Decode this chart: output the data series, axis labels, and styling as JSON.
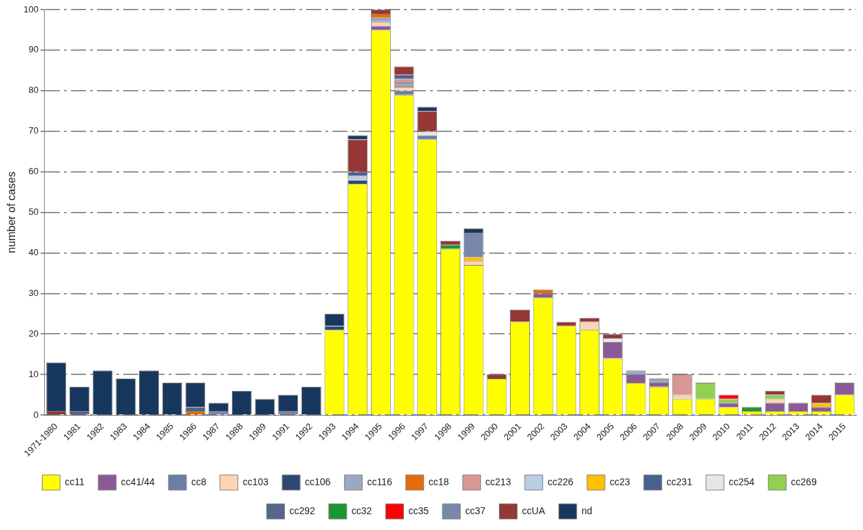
{
  "chart_data": {
    "type": "bar",
    "stacked": true,
    "ylabel": "number of cases",
    "categories": [
      "1971-1980",
      "1981",
      "1982",
      "1983",
      "1984",
      "1985",
      "1986",
      "1987",
      "1988",
      "1989",
      "1991",
      "1992",
      "1993",
      "1994",
      "1995",
      "1996",
      "1997",
      "1998",
      "1999",
      "2000",
      "2001",
      "2002",
      "2003",
      "2004",
      "2005",
      "2006",
      "2007",
      "2008",
      "2009",
      "2010",
      "2011",
      "2012",
      "2013",
      "2014",
      "2015"
    ],
    "ylim": [
      0,
      100
    ],
    "yticks": [
      0,
      10,
      20,
      30,
      40,
      50,
      60,
      70,
      80,
      90,
      100
    ],
    "grid": "y",
    "legend": "bottom",
    "series": [
      {
        "name": "cc11",
        "color": "#ffff00",
        "values": [
          null,
          null,
          null,
          null,
          null,
          null,
          null,
          null,
          null,
          null,
          null,
          null,
          21,
          57,
          95,
          79,
          68,
          41,
          37,
          9,
          23,
          29,
          22,
          21,
          14,
          8,
          7,
          4,
          4,
          2,
          1,
          1,
          1,
          1,
          5
        ]
      },
      {
        "name": "cc41/44",
        "color": "#8a5a97",
        "values": [
          null,
          null,
          null,
          null,
          null,
          null,
          null,
          null,
          null,
          null,
          null,
          null,
          null,
          null,
          1,
          null,
          null,
          null,
          null,
          null,
          null,
          1,
          null,
          null,
          4,
          2,
          1,
          null,
          null,
          1,
          null,
          2,
          2,
          1,
          3
        ]
      },
      {
        "name": "cc8",
        "color": "#6a7ea6",
        "values": [
          null,
          null,
          null,
          null,
          null,
          null,
          null,
          null,
          null,
          null,
          null,
          null,
          null,
          null,
          null,
          1,
          1,
          null,
          null,
          null,
          null,
          null,
          null,
          null,
          null,
          null,
          null,
          null,
          null,
          null,
          null,
          null,
          null,
          null,
          null
        ]
      },
      {
        "name": "cc103",
        "color": "#fcd5b5",
        "values": [
          null,
          null,
          null,
          null,
          null,
          null,
          null,
          null,
          null,
          null,
          null,
          null,
          null,
          null,
          1,
          1,
          null,
          null,
          1,
          null,
          null,
          null,
          null,
          2,
          null,
          null,
          null,
          1,
          null,
          null,
          null,
          1,
          null,
          null,
          null
        ]
      },
      {
        "name": "cc106",
        "color": "#2f4775",
        "values": [
          null,
          null,
          null,
          null,
          null,
          null,
          null,
          null,
          null,
          null,
          null,
          null,
          1,
          1,
          null,
          null,
          null,
          null,
          null,
          null,
          null,
          null,
          null,
          null,
          null,
          null,
          null,
          null,
          null,
          null,
          null,
          null,
          null,
          null,
          null
        ]
      },
      {
        "name": "cc116",
        "color": "#9aa8c2",
        "values": [
          null,
          null,
          null,
          null,
          null,
          null,
          null,
          null,
          null,
          null,
          null,
          null,
          null,
          null,
          1,
          1,
          null,
          null,
          null,
          null,
          null,
          null,
          null,
          null,
          null,
          1,
          1,
          null,
          null,
          null,
          null,
          null,
          null,
          null,
          null
        ]
      },
      {
        "name": "cc18",
        "color": "#e46c0a",
        "values": [
          null,
          null,
          null,
          null,
          null,
          null,
          1,
          null,
          null,
          null,
          null,
          null,
          null,
          null,
          1,
          null,
          null,
          null,
          null,
          null,
          null,
          1,
          null,
          null,
          null,
          null,
          null,
          null,
          null,
          null,
          null,
          null,
          null,
          null,
          null
        ]
      },
      {
        "name": "cc213",
        "color": "#d99694",
        "values": [
          null,
          null,
          null,
          null,
          null,
          null,
          null,
          null,
          null,
          null,
          null,
          null,
          null,
          null,
          null,
          1,
          null,
          null,
          null,
          null,
          null,
          null,
          null,
          null,
          null,
          null,
          null,
          5,
          null,
          null,
          null,
          null,
          null,
          null,
          null
        ]
      },
      {
        "name": "cc226",
        "color": "#b9cde5",
        "values": [
          null,
          null,
          null,
          null,
          null,
          null,
          null,
          null,
          null,
          null,
          null,
          null,
          null,
          1,
          null,
          null,
          null,
          null,
          null,
          null,
          null,
          null,
          null,
          null,
          null,
          null,
          null,
          null,
          null,
          null,
          null,
          null,
          null,
          null,
          null
        ]
      },
      {
        "name": "cc23",
        "color": "#ffc000",
        "values": [
          null,
          null,
          null,
          null,
          null,
          null,
          null,
          null,
          null,
          null,
          null,
          null,
          null,
          null,
          null,
          null,
          null,
          null,
          1,
          null,
          null,
          null,
          null,
          null,
          null,
          null,
          null,
          null,
          null,
          null,
          null,
          null,
          null,
          1,
          null
        ]
      },
      {
        "name": "cc231",
        "color": "#4a6090",
        "values": [
          null,
          null,
          null,
          null,
          null,
          null,
          1,
          null,
          null,
          null,
          null,
          null,
          null,
          1,
          null,
          1,
          null,
          null,
          null,
          null,
          null,
          null,
          null,
          null,
          null,
          null,
          null,
          null,
          null,
          null,
          null,
          null,
          null,
          null,
          null
        ]
      },
      {
        "name": "cc254",
        "color": "#e6e6e6",
        "values": [
          null,
          null,
          null,
          null,
          null,
          null,
          null,
          null,
          null,
          null,
          null,
          null,
          null,
          null,
          null,
          null,
          1,
          null,
          null,
          null,
          null,
          null,
          null,
          null,
          1,
          null,
          null,
          null,
          null,
          null,
          null,
          null,
          null,
          null,
          null
        ]
      },
      {
        "name": "cc269",
        "color": "#92d050",
        "values": [
          null,
          null,
          null,
          null,
          null,
          null,
          null,
          null,
          null,
          null,
          null,
          null,
          null,
          null,
          null,
          null,
          null,
          null,
          null,
          null,
          null,
          null,
          null,
          null,
          null,
          null,
          null,
          null,
          4,
          1,
          null,
          1,
          null,
          null,
          null
        ]
      },
      {
        "name": "cc292",
        "color": "#56658a",
        "values": [
          null,
          1,
          null,
          null,
          null,
          null,
          null,
          null,
          null,
          null,
          null,
          null,
          null,
          null,
          null,
          null,
          null,
          null,
          null,
          null,
          null,
          null,
          null,
          null,
          null,
          null,
          null,
          null,
          null,
          null,
          null,
          null,
          null,
          null,
          null
        ]
      },
      {
        "name": "cc32",
        "color": "#1e9630",
        "values": [
          null,
          null,
          null,
          null,
          null,
          null,
          null,
          null,
          null,
          null,
          null,
          null,
          null,
          null,
          null,
          null,
          null,
          1,
          null,
          null,
          null,
          null,
          null,
          null,
          null,
          null,
          null,
          null,
          null,
          null,
          1,
          null,
          null,
          null,
          null
        ]
      },
      {
        "name": "cc35",
        "color": "#ff0000",
        "values": [
          null,
          null,
          null,
          null,
          null,
          null,
          null,
          null,
          null,
          null,
          null,
          null,
          null,
          null,
          null,
          null,
          null,
          null,
          null,
          null,
          null,
          null,
          null,
          null,
          null,
          null,
          null,
          null,
          null,
          1,
          null,
          null,
          null,
          null,
          null
        ]
      },
      {
        "name": "cc37",
        "color": "#7788aa",
        "values": [
          null,
          null,
          null,
          null,
          null,
          null,
          null,
          1,
          null,
          null,
          1,
          null,
          null,
          null,
          null,
          null,
          null,
          null,
          6,
          null,
          null,
          null,
          null,
          null,
          null,
          null,
          null,
          null,
          null,
          null,
          null,
          null,
          null,
          null,
          null
        ]
      },
      {
        "name": "ccUA",
        "color": "#953735",
        "values": [
          1,
          null,
          null,
          null,
          null,
          null,
          null,
          null,
          null,
          null,
          null,
          null,
          null,
          8,
          1,
          2,
          5,
          1,
          null,
          1,
          3,
          null,
          1,
          1,
          1,
          null,
          null,
          null,
          null,
          null,
          null,
          1,
          null,
          2,
          null
        ]
      },
      {
        "name": "nd",
        "color": "#17375e",
        "values": [
          12,
          6,
          11,
          9,
          11,
          8,
          6,
          2,
          6,
          4,
          4,
          7,
          3,
          1,
          null,
          null,
          1,
          null,
          1,
          null,
          null,
          null,
          null,
          null,
          null,
          null,
          null,
          null,
          null,
          null,
          null,
          null,
          null,
          null,
          null
        ]
      }
    ]
  }
}
